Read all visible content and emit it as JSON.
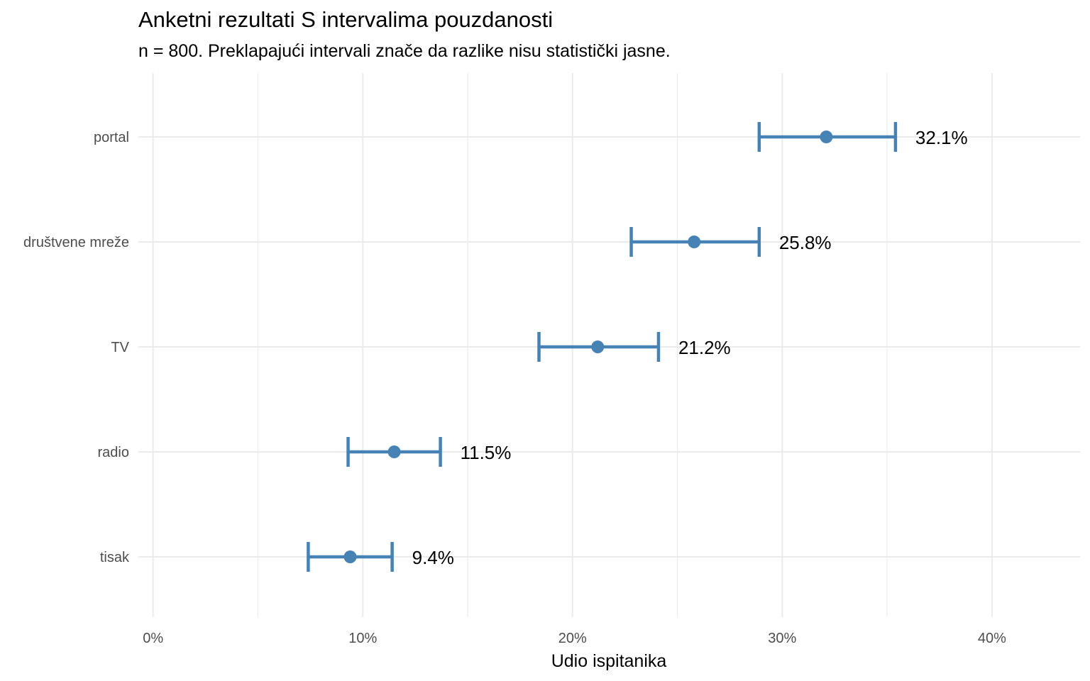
{
  "chart_data": {
    "type": "dot-errorbar",
    "title": "Anketni rezultati S intervalima pouzdanosti",
    "subtitle": "n = 800. Preklapajući intervali znače da razlike nisu statistički jasne.",
    "xlabel": "Udio ispitanika",
    "ylabel": "",
    "xlim": [
      -0.7,
      44.2
    ],
    "xticks": [
      0,
      10,
      20,
      30,
      40
    ],
    "xtick_labels": [
      "0%",
      "10%",
      "20%",
      "30%",
      "40%"
    ],
    "minor_gridlines": [
      5,
      15,
      25,
      35
    ],
    "grid": true,
    "legend": "none",
    "color": "#4682b4",
    "categories": [
      "portal",
      "društvene mreže",
      "TV",
      "radio",
      "tisak"
    ],
    "values": [
      32.1,
      25.8,
      21.2,
      11.5,
      9.4
    ],
    "ci_low": [
      28.9,
      22.8,
      18.4,
      9.3,
      7.4
    ],
    "ci_high": [
      35.4,
      28.9,
      24.1,
      13.7,
      11.4
    ],
    "value_labels": [
      "32.1%",
      "25.8%",
      "21.2%",
      "11.5%",
      "9.4%"
    ]
  }
}
